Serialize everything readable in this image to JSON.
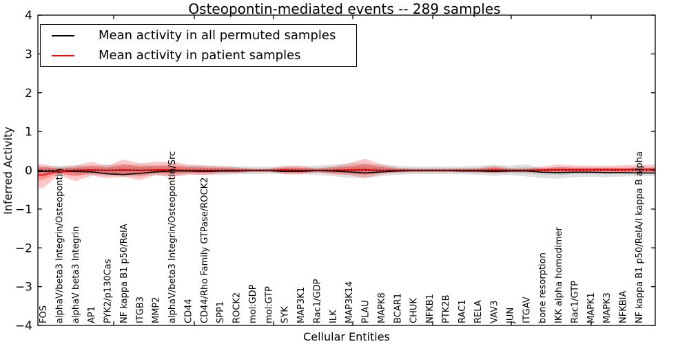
{
  "figure": {
    "title": "Osteopontin-mediated events -- 289 samples"
  },
  "legend": {
    "entries": [
      {
        "label": "Mean activity in all permuted samples",
        "color": "#000000"
      },
      {
        "label": "Mean activity in patient samples",
        "color": "#ff0000"
      }
    ]
  },
  "chart_data": {
    "type": "line",
    "title": "Osteopontin-mediated events -- 289 samples",
    "xlabel": "Cellular Entities",
    "ylabel": "Inferred Activity",
    "ylim": [
      -4,
      4
    ],
    "yticks": [
      4,
      3,
      2,
      1,
      0,
      -1,
      -2,
      -3,
      -4
    ],
    "yticklabels": [
      "4",
      "3",
      "2",
      "1",
      "0",
      "−1",
      "−2",
      "−3",
      "−4"
    ],
    "legend_position": "upper left",
    "grid": false,
    "n_samples": 289,
    "categories": [
      "FOS",
      "alphaV/beta3 Integrin/Osteopontin",
      "alphaV beta3 Integrin",
      "AP1",
      "PYK2/p130Cas",
      "NF kappa B1 p50/RelA",
      "ITGB3",
      "MMP2",
      "alphaV/beta3 Integrin/Osteopontin/Src",
      "CD44",
      "CD44/Rho Family GTPase/ROCK2",
      "SPP1",
      "ROCK2",
      "mol:GDP",
      "mol:GTP",
      "SYK",
      "MAP3K1",
      "Rac1/GDP",
      "ILK",
      "MAP3K14",
      "PLAU",
      "MAPK8",
      "BCAR1",
      "CHUK",
      "NFKB1",
      "PTK2B",
      "RAC1",
      "RELA",
      "VAV3",
      "JUN",
      "ITGAV",
      "bone resorption",
      "IKK alpha homodimer",
      "Rac1/GTP",
      "MAPK1",
      "MAPK3",
      "NFKBIA",
      "NF kappa B1 p50/RelA/I kappa B alpha"
    ],
    "series": [
      {
        "name": "Mean activity in all permuted samples",
        "color": "#000000",
        "values": [
          -0.03,
          -0.02,
          -0.03,
          -0.04,
          -0.09,
          -0.11,
          -0.08,
          -0.04,
          -0.02,
          -0.02,
          -0.03,
          -0.02,
          -0.02,
          -0.01,
          -0.01,
          -0.03,
          -0.03,
          -0.01,
          -0.02,
          -0.04,
          -0.07,
          -0.04,
          -0.02,
          -0.01,
          -0.01,
          -0.01,
          -0.02,
          -0.02,
          -0.03,
          -0.02,
          -0.02,
          -0.05,
          -0.06,
          -0.05,
          -0.05,
          -0.06,
          -0.06,
          -0.07
        ]
      },
      {
        "name": "Mean activity in patient samples",
        "color": "#ff0000",
        "values": [
          -0.12,
          -0.02,
          0.0,
          0.01,
          0.0,
          0.01,
          0.0,
          0.01,
          0.01,
          0.0,
          0.0,
          0.0,
          0.0,
          0.0,
          0.0,
          0.01,
          0.0,
          0.0,
          0.0,
          0.01,
          0.02,
          0.0,
          0.0,
          0.0,
          0.0,
          0.0,
          0.0,
          0.0,
          0.01,
          0.0,
          0.0,
          0.01,
          0.02,
          0.02,
          0.02,
          0.02,
          0.02,
          0.03
        ]
      }
    ],
    "bands": [
      {
        "name": "permuted-range",
        "color": "rgba(0,0,0,0.12)",
        "inner_color": "rgba(0,0,0,0.10)",
        "inner_scale": 0.55,
        "upper": [
          0.1,
          0.12,
          0.13,
          0.12,
          0.14,
          0.15,
          0.15,
          0.13,
          0.15,
          0.12,
          0.12,
          0.12,
          0.1,
          0.1,
          0.09,
          0.1,
          0.1,
          0.12,
          0.15,
          0.18,
          0.18,
          0.15,
          0.12,
          0.1,
          0.1,
          0.1,
          0.1,
          0.12,
          0.14,
          0.12,
          0.15,
          0.06,
          0.08,
          0.07,
          0.07,
          0.07,
          0.06,
          0.06
        ],
        "lower": [
          -0.1,
          -0.12,
          -0.13,
          -0.12,
          -0.14,
          -0.16,
          -0.16,
          -0.13,
          -0.15,
          -0.12,
          -0.12,
          -0.12,
          -0.1,
          -0.1,
          -0.09,
          -0.1,
          -0.1,
          -0.12,
          -0.15,
          -0.2,
          -0.2,
          -0.15,
          -0.12,
          -0.1,
          -0.1,
          -0.1,
          -0.1,
          -0.12,
          -0.14,
          -0.12,
          -0.16,
          -0.2,
          -0.22,
          -0.18,
          -0.17,
          -0.18,
          -0.16,
          -0.15
        ]
      },
      {
        "name": "patient-range",
        "color": "rgba(255,0,0,0.22)",
        "inner_color": "rgba(255,0,0,0.25)",
        "inner_scale": 0.55,
        "upper": [
          0.16,
          0.07,
          0.12,
          0.22,
          0.12,
          0.28,
          0.18,
          0.22,
          0.22,
          0.15,
          0.13,
          0.1,
          0.08,
          0.04,
          0.04,
          0.12,
          0.12,
          0.05,
          0.1,
          0.18,
          0.3,
          0.15,
          0.06,
          0.04,
          0.04,
          0.04,
          0.05,
          0.05,
          0.12,
          0.05,
          0.05,
          0.1,
          0.15,
          0.13,
          0.12,
          0.12,
          0.13,
          0.14
        ],
        "lower": [
          -0.45,
          -0.12,
          -0.28,
          -0.14,
          -0.2,
          -0.17,
          -0.25,
          -0.12,
          -0.18,
          -0.1,
          -0.12,
          -0.08,
          -0.08,
          -0.04,
          -0.04,
          -0.1,
          -0.1,
          -0.05,
          -0.1,
          -0.12,
          -0.2,
          -0.1,
          -0.06,
          -0.04,
          -0.04,
          -0.04,
          -0.05,
          -0.05,
          -0.08,
          -0.05,
          -0.05,
          -0.05,
          -0.06,
          -0.05,
          -0.04,
          -0.04,
          -0.05,
          -0.05
        ]
      }
    ],
    "zero_line": {
      "style": "dotted",
      "color": "#000000",
      "y": 0
    }
  }
}
